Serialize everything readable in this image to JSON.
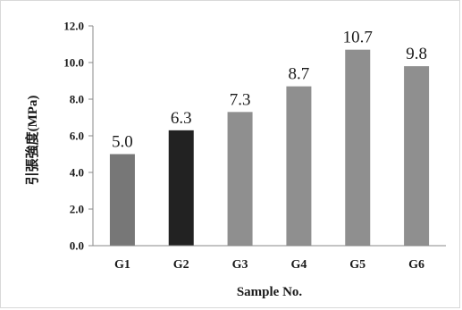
{
  "chart_data": {
    "type": "bar",
    "categories": [
      "G1",
      "G2",
      "G3",
      "G4",
      "G5",
      "G6"
    ],
    "values": [
      5.0,
      6.3,
      7.3,
      8.7,
      10.7,
      9.8
    ],
    "data_labels": [
      "5.0",
      "6.3",
      "7.3",
      "8.7",
      "10.7",
      "9.8"
    ],
    "bar_colors": [
      "#777777",
      "#222222",
      "#8f8f8f",
      "#8f8f8f",
      "#8f8f8f",
      "#8f8f8f"
    ],
    "title": "",
    "xlabel": "Sample No.",
    "ylabel": "引張強度(MPa)",
    "ylim": [
      0,
      12
    ],
    "yticks": [
      "0.0",
      "2.0",
      "4.0",
      "6.0",
      "8.0",
      "10.0",
      "12.0"
    ],
    "grid": false,
    "legend": "none"
  }
}
